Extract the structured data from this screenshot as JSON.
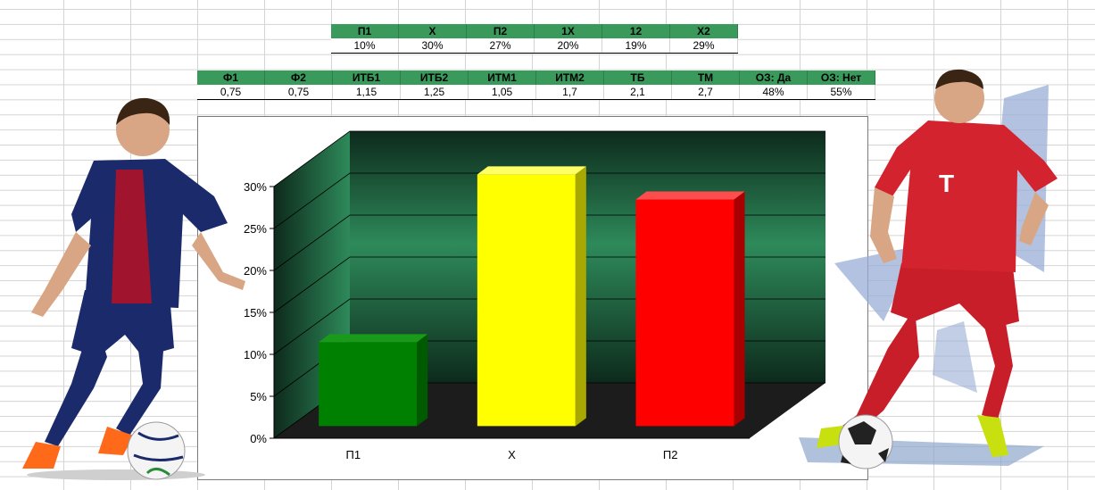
{
  "top_table": {
    "headers": [
      "П1",
      "X",
      "П2",
      "1X",
      "12",
      "X2"
    ],
    "values": [
      "10%",
      "30%",
      "27%",
      "20%",
      "19%",
      "29%"
    ]
  },
  "bottom_table": {
    "headers": [
      "Ф1",
      "Ф2",
      "ИТБ1",
      "ИТБ2",
      "ИТМ1",
      "ИТМ2",
      "ТБ",
      "ТМ",
      "ОЗ: Да",
      "ОЗ: Нет"
    ],
    "values": [
      "0,75",
      "0,75",
      "1,15",
      "1,25",
      "1,05",
      "1,7",
      "2,1",
      "2,7",
      "48%",
      "55%"
    ]
  },
  "chart_data": {
    "type": "bar",
    "categories": [
      "П1",
      "X",
      "П2"
    ],
    "values": [
      10,
      30,
      27
    ],
    "colors": [
      "#008000",
      "#ffff00",
      "#ff0000"
    ],
    "side_colors": [
      "#005a00",
      "#a8a800",
      "#a80000"
    ],
    "top_colors": [
      "#1a9a1a",
      "#ffff66",
      "#ff4d4d"
    ],
    "ylim": [
      0,
      30
    ],
    "yticks": [
      "0%",
      "5%",
      "10%",
      "15%",
      "20%",
      "25%",
      "30%"
    ],
    "grid": true,
    "three_d": true,
    "wall_gradient": [
      "#2e8a5a",
      "#0d2a1c"
    ],
    "floor_color": "#1c1c1c",
    "title": "",
    "xlabel": "",
    "ylabel": ""
  },
  "players": {
    "left": {
      "shirt": "#1b2a6b",
      "stripe": "#a0142d",
      "shorts": "#1b2a6b",
      "skin": "#d8a684",
      "boots": "#ff6a1a"
    },
    "right": {
      "shirt": "#d2232e",
      "shorts": "#c81e2a",
      "skin": "#d8a684",
      "boots": "#c8e010",
      "shape": "#9aaed6"
    }
  }
}
